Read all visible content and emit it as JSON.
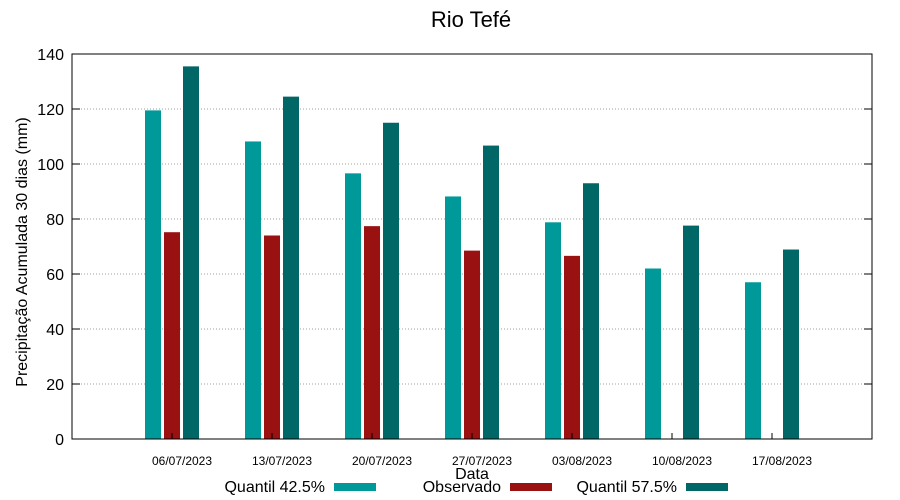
{
  "chart_data": {
    "type": "bar",
    "title": "Rio Tefé",
    "xlabel": "Data",
    "ylabel": "Precipitação Acumulada 30 dias (mm)",
    "ylim": [
      0,
      140
    ],
    "yticks": [
      0,
      20,
      40,
      60,
      80,
      100,
      120,
      140
    ],
    "grid": true,
    "legend_position": "bottom",
    "categories": [
      "06/07/2023",
      "13/07/2023",
      "20/07/2023",
      "27/07/2023",
      "03/08/2023",
      "10/08/2023",
      "17/08/2023"
    ],
    "series": [
      {
        "name": "Quantil 42.5%",
        "color": "#009999",
        "values": [
          119.5,
          108.2,
          96.6,
          88.2,
          78.8,
          62.0,
          57.0
        ]
      },
      {
        "name": "Observado",
        "color": "#991111",
        "values": [
          75.2,
          74.0,
          77.4,
          68.5,
          66.6,
          null,
          null
        ]
      },
      {
        "name": "Quantil 57.5%",
        "color": "#006666",
        "values": [
          135.5,
          124.5,
          115.0,
          106.7,
          93.0,
          77.6,
          68.9
        ]
      }
    ]
  }
}
